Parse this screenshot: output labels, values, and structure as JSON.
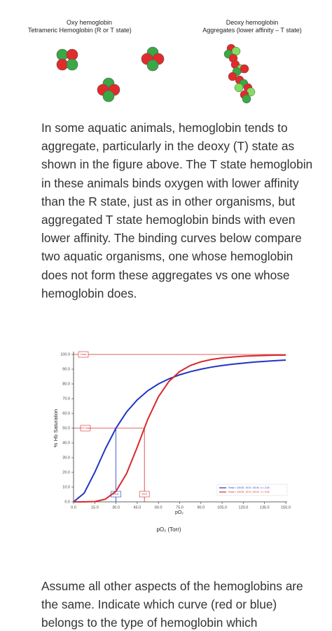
{
  "figure": {
    "left_caption": [
      "Oxy hemoglobin",
      "Tetrameric Hemoglobin (R or T state)"
    ],
    "right_caption": [
      "Deoxy hemoglobin",
      "Aggregates (lower affinity – T state)"
    ]
  },
  "paragraphs": [
    "In some aquatic animals, hemoglobin tends to aggregate, particularly in the deoxy (T) state as shown in the figure above. The T state hemoglobin in these animals binds oxygen with lower affinity than the R state, just as in other organisms, but aggregated T state hemoglobin binds with even lower affinity. The binding curves below compare two aquatic organisms, one whose hemoglobin does not form these aggregates vs one whose hemoglobin does.",
    "Assume all other aspects of the hemoglobins are the same. Indicate which curve (red or blue) belongs to the type of hemoglobin which"
  ],
  "chart_data": {
    "type": "line",
    "y_label": "% Hb Saturation",
    "x_label": "pO₂",
    "x_caption": "pO₂ (Torr)",
    "annotations": [
      "Vmax",
      "0.5 Vmax",
      "K0.5",
      "K0.5"
    ],
    "x": [
      0,
      7.5,
      15,
      22.5,
      30,
      37.5,
      45,
      52.5,
      60,
      67.5,
      75,
      82.5,
      90,
      97.5,
      105,
      112.5,
      120,
      127.5,
      135,
      142.5,
      150
    ],
    "series": [
      {
        "name": "Vmax = 100.00 , K0.5 = 30.00 , n = 2.00",
        "color": "#1f35c4",
        "values": [
          0,
          5.9,
          20,
          36,
          50,
          61,
          69.2,
          75.4,
          80,
          83.5,
          86.2,
          88.3,
          90,
          91.4,
          92.5,
          93.4,
          94.1,
          94.8,
          95.3,
          95.8,
          96.2
        ]
      },
      {
        "name": "Vmax = 100.00 , K0.5 = 50.00 , n = 5.00",
        "color": "#d62b2b",
        "values": [
          0,
          0,
          0.2,
          1.8,
          7.2,
          19.2,
          37.1,
          56.1,
          71.3,
          81.8,
          88.4,
          92.5,
          95,
          96.6,
          97.6,
          98.3,
          98.8,
          99.1,
          99.3,
          99.5,
          99.6
        ]
      }
    ],
    "xlim": [
      0,
      150
    ],
    "xticks": [
      {
        "value": 0,
        "label": "0.0"
      },
      {
        "value": 15,
        "label": "15.0"
      },
      {
        "value": 30,
        "label": "30.0"
      },
      {
        "value": 45,
        "label": "45.0"
      },
      {
        "value": 60,
        "label": "60.0"
      },
      {
        "value": 75,
        "label": "75.0"
      },
      {
        "value": 90,
        "label": "90.0"
      },
      {
        "value": 105,
        "label": "105.0"
      },
      {
        "value": 120,
        "label": "120.0"
      },
      {
        "value": 135,
        "label": "135.0"
      },
      {
        "value": 150,
        "label": "150.0"
      }
    ],
    "ylim": [
      0,
      100
    ],
    "yticks": [
      {
        "value": 0,
        "label": "0.0"
      },
      {
        "value": 10,
        "label": "10.0"
      },
      {
        "value": 20,
        "label": "20.0"
      },
      {
        "value": 30,
        "label": "30.0"
      },
      {
        "value": 40,
        "label": "40.0"
      },
      {
        "value": 50,
        "label": "50.0"
      },
      {
        "value": 60,
        "label": "60.0"
      },
      {
        "value": 70,
        "label": "70.0"
      },
      {
        "value": 80,
        "label": "80.0"
      },
      {
        "value": 90,
        "label": "90.0"
      },
      {
        "value": 100,
        "label": "100.0"
      }
    ],
    "grid": false
  }
}
